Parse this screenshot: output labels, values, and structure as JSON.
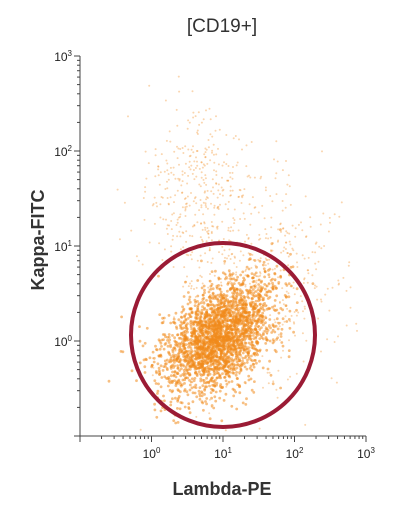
{
  "chart_data": {
    "type": "scatter",
    "title": "[CD19+]",
    "xlabel": "Lambda-PE",
    "ylabel": "Kappa-FITC",
    "x_scale": "log",
    "y_scale": "log",
    "xlim": [
      0.1,
      1000
    ],
    "ylim": [
      0.1,
      1000
    ],
    "x_ticks": [
      {
        "value": 1,
        "base": "10",
        "exp": "0"
      },
      {
        "value": 10,
        "base": "10",
        "exp": "1"
      },
      {
        "value": 100,
        "base": "10",
        "exp": "2"
      },
      {
        "value": 1000,
        "base": "10",
        "exp": "3"
      }
    ],
    "y_ticks": [
      {
        "value": 1,
        "base": "10",
        "exp": "0"
      },
      {
        "value": 10,
        "base": "10",
        "exp": "1"
      },
      {
        "value": 100,
        "base": "10",
        "exp": "2"
      },
      {
        "value": 1000,
        "base": "10",
        "exp": "3"
      }
    ],
    "point_color": "#f08a1c",
    "populations": [
      {
        "center": [
          9,
          1.1
        ],
        "spread_log": [
          0.38,
          0.26
        ],
        "count": 2600
      },
      {
        "center": [
          4,
          40
        ],
        "spread_log": [
          0.35,
          0.4
        ],
        "count": 320
      },
      {
        "center": [
          30,
          5
        ],
        "spread_log": [
          0.6,
          0.6
        ],
        "count": 500
      }
    ],
    "gate": {
      "shape": "circle",
      "center": [
        10,
        1
      ],
      "color": "#9b1b35"
    },
    "grid": false
  }
}
